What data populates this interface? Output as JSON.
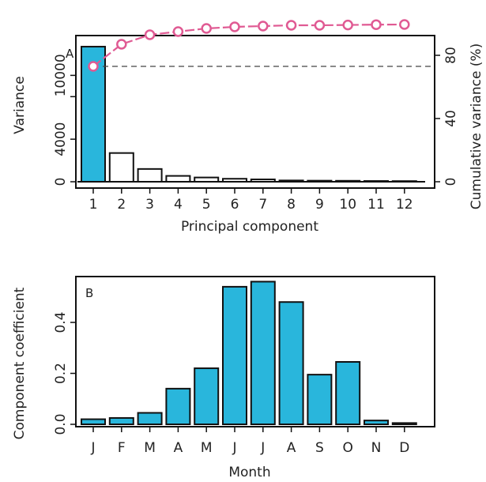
{
  "chart_data": [
    {
      "type": "bar",
      "panel_label": "A",
      "categories": [
        "1",
        "2",
        "3",
        "4",
        "5",
        "6",
        "7",
        "8",
        "9",
        "10",
        "11",
        "12"
      ],
      "series": [
        {
          "values": [
            12700,
            2700,
            1200,
            550,
            400,
            280,
            220,
            120,
            100,
            90,
            70,
            60
          ]
        },
        {
          "values": [
            73,
            87,
            93,
            95,
            97,
            98,
            98.5,
            99,
            99,
            99.2,
            99.4,
            99.5
          ]
        }
      ],
      "reference_line": 73,
      "xlabel": "Principal component",
      "ylabel": "Variance",
      "ylabel_right": "Cumulative variance (%)",
      "ylim": [
        0,
        13000
      ],
      "ylim_right": [
        0,
        100
      ],
      "yticks": [
        "0",
        "4000",
        "10000"
      ],
      "yticks_values": [
        0,
        4000,
        10000
      ],
      "yticks_minor": [
        8000
      ],
      "yticks_right": [
        "0",
        "40",
        "80"
      ],
      "yticks_right_values": [
        0,
        40,
        80
      ],
      "colors": {
        "highlight_bar": "#29b6dc",
        "plain_bar": "#ffffff",
        "line": "#e05a93"
      }
    },
    {
      "type": "bar",
      "panel_label": "B",
      "categories": [
        "J",
        "F",
        "M",
        "A",
        "M",
        "J",
        "J",
        "A",
        "S",
        "O",
        "N",
        "D"
      ],
      "values": [
        0.02,
        0.025,
        0.045,
        0.14,
        0.22,
        0.54,
        0.56,
        0.48,
        0.195,
        0.245,
        0.015,
        0.005
      ],
      "xlabel": "Month",
      "ylabel": "Component coefficient",
      "ylim": [
        0,
        0.58
      ],
      "yticks": [
        "0.0",
        "0.2",
        "0.4"
      ],
      "yticks_values": [
        0,
        0.2,
        0.4
      ],
      "colors": {
        "bar": "#29b6dc"
      }
    }
  ]
}
